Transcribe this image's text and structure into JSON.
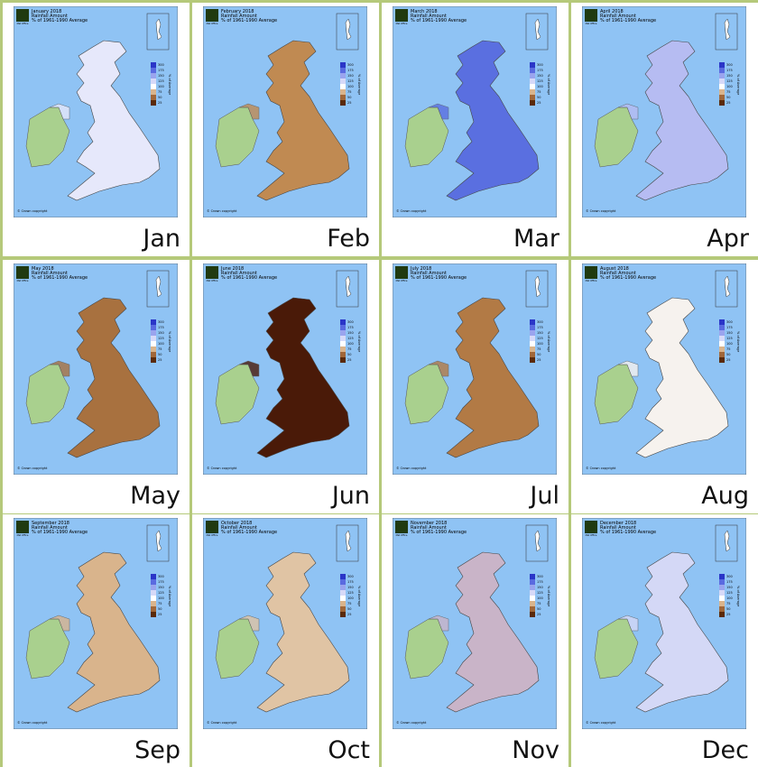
{
  "legend": {
    "title": "% of Average",
    "ticks": [
      "300",
      "175",
      "150",
      "125",
      "100",
      "75",
      "50",
      "25"
    ]
  },
  "subtitle": "Rainfall Amount",
  "note": "% of 1961-1990 Average",
  "copyright": "© Crown copyright",
  "logo": "Met Office",
  "maps": [
    {
      "title": "January 2018",
      "label": "Jan",
      "color": "#e6e8fb"
    },
    {
      "title": "February 2018",
      "label": "Feb",
      "color": "#c08a52"
    },
    {
      "title": "March 2018",
      "label": "Mar",
      "color": "#5a6fe0"
    },
    {
      "title": "April 2018",
      "label": "Apr",
      "color": "#b6bcf2"
    },
    {
      "title": "May 2018",
      "label": "May",
      "color": "#a8713f"
    },
    {
      "title": "June 2018",
      "label": "Jun",
      "color": "#4a1a08"
    },
    {
      "title": "July 2018",
      "label": "Jul",
      "color": "#b27a45"
    },
    {
      "title": "August 2018",
      "label": "Aug",
      "color": "#f6f2ee"
    },
    {
      "title": "September 2018",
      "label": "Sep",
      "color": "#d9b48c"
    },
    {
      "title": "October 2018",
      "label": "Oct",
      "color": "#e0c4a4"
    },
    {
      "title": "November 2018",
      "label": "Nov",
      "color": "#c9b4c8"
    },
    {
      "title": "December 2018",
      "label": "Dec",
      "color": "#d4d8f6"
    }
  ]
}
